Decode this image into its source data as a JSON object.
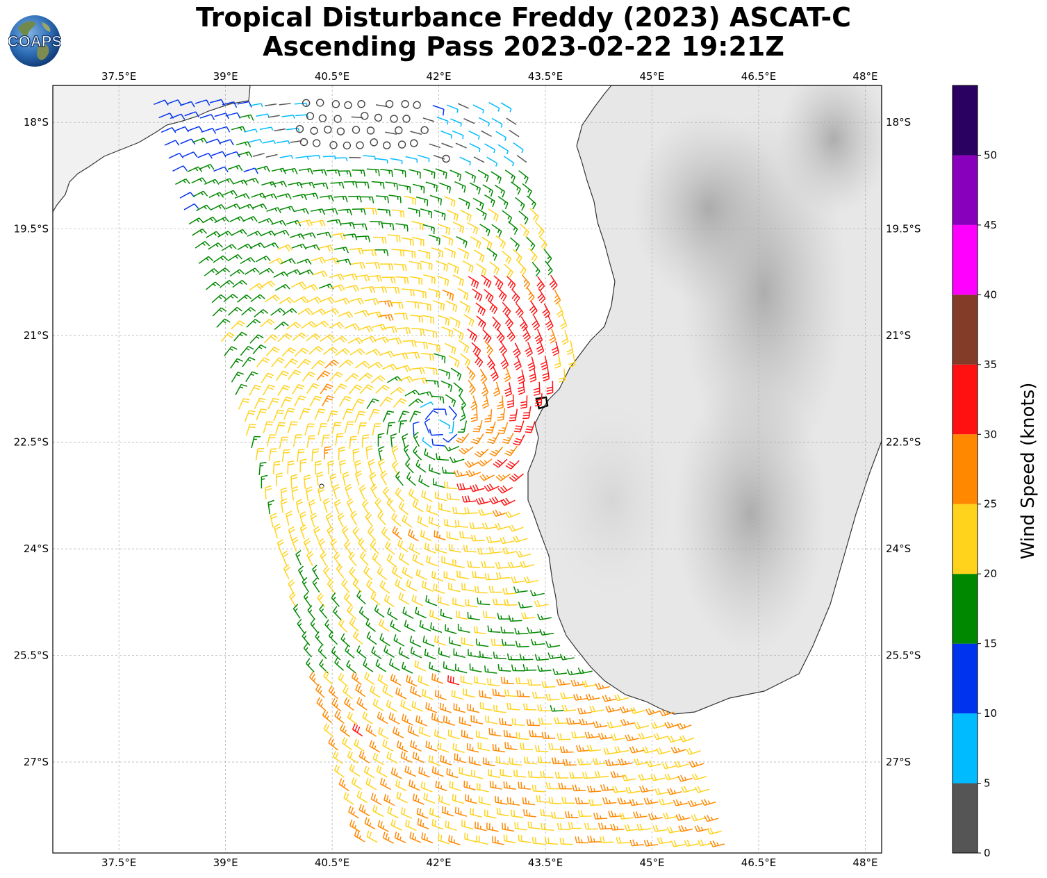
{
  "title": {
    "line1": "Tropical Disturbance Freddy (2023) ASCAT-C",
    "line2": "Ascending Pass 2023-02-22 19:21Z"
  },
  "logo": {
    "text": "COAPS"
  },
  "map": {
    "lon_ticks": [
      "37.5°E",
      "39°E",
      "40.5°E",
      "42°E",
      "43.5°E",
      "45°E",
      "46.5°E",
      "48°E"
    ],
    "lat_ticks": [
      "18°S",
      "19.5°S",
      "21°S",
      "22.5°S",
      "24°S",
      "25.5°S",
      "27°S"
    ],
    "lon_range": [
      36.57,
      48.23
    ],
    "lat_range": [
      -28.28,
      -17.48
    ],
    "storm_center_lonlat": [
      42.0,
      -22.25
    ]
  },
  "colorbar": {
    "label": "Wind Speed (knots)",
    "tick_labels": [
      "0",
      "5",
      "10",
      "15",
      "20",
      "25",
      "30",
      "35",
      "40",
      "45",
      "50"
    ],
    "range": [
      0,
      55
    ],
    "bins": [
      {
        "from": 0,
        "to": 5,
        "color": "#555555"
      },
      {
        "from": 5,
        "to": 10,
        "color": "#00bbff"
      },
      {
        "from": 10,
        "to": 15,
        "color": "#0033ee"
      },
      {
        "from": 15,
        "to": 20,
        "color": "#008800"
      },
      {
        "from": 20,
        "to": 25,
        "color": "#ffd21c"
      },
      {
        "from": 25,
        "to": 30,
        "color": "#ff8800"
      },
      {
        "from": 30,
        "to": 35,
        "color": "#ff1111"
      },
      {
        "from": 35,
        "to": 40,
        "color": "#833c28"
      },
      {
        "from": 40,
        "to": 45,
        "color": "#ff00ff"
      },
      {
        "from": 45,
        "to": 50,
        "color": "#8800bb"
      },
      {
        "from": 50,
        "to": 55,
        "color": "#2a0060"
      }
    ]
  }
}
